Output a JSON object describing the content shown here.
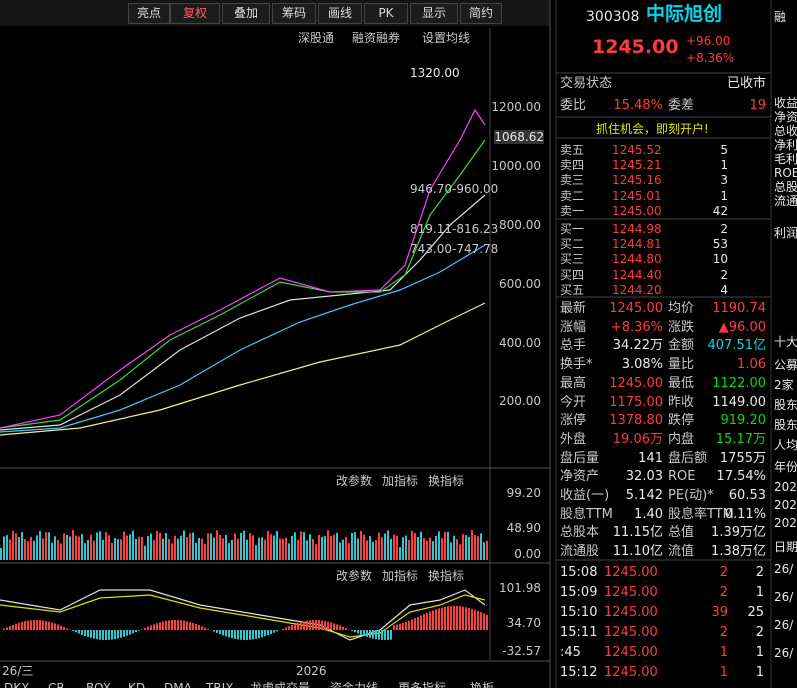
{
  "toolbar": [
    "亮点",
    "复权",
    "叠加",
    "筹码",
    "画线",
    "PK",
    "显示",
    "简约"
  ],
  "subbar": [
    "深股通",
    "融资融券",
    "设置均线"
  ],
  "price_chart": {
    "axis_labels": [
      "1200.00",
      "1000.00",
      "800.00",
      "600.00",
      "400.00",
      "200.00"
    ],
    "current": "1068.62",
    "high_note": "1320.00",
    "gap_notes": [
      "946.70-960.00",
      "819.11-816.23",
      "743.00-747.78"
    ]
  },
  "volume_pane": {
    "tools": [
      "改参数",
      "加指标",
      "换指标"
    ],
    "axis_labels": [
      "99.20",
      "48.90",
      "0.00"
    ]
  },
  "macd_pane": {
    "tools": [
      "改参数",
      "加指标",
      "换指标"
    ],
    "axis_labels": [
      "101.98",
      "34.70",
      "-32.57"
    ]
  },
  "time_bar": {
    "left": "26/三",
    "year": "2026"
  },
  "bottom_tabs": [
    "DKX",
    "CR",
    "BOX",
    "KD",
    "DMA",
    "TRIX",
    "龙虎成交量",
    "资金力线",
    "更多指标",
    "换板"
  ],
  "quote": {
    "code": "300308",
    "name": "中际旭创",
    "price": "1245.00",
    "change": "+96.00",
    "change_pct": "+8.36%",
    "status_label": "交易状态",
    "status": "已收市",
    "ratio_label": "委比",
    "ratio": "15.48%",
    "diff_label": "委差",
    "diff": "19",
    "banner": "抓住机会，即刻开户!",
    "asks": [
      [
        "卖五",
        "1245.52",
        "5"
      ],
      [
        "卖四",
        "1245.21",
        "1"
      ],
      [
        "卖三",
        "1245.16",
        "3"
      ],
      [
        "卖二",
        "1245.01",
        "1"
      ],
      [
        "卖一",
        "1245.00",
        "42"
      ]
    ],
    "bids": [
      [
        "买一",
        "1244.98",
        "2"
      ],
      [
        "买二",
        "1244.81",
        "53"
      ],
      [
        "买三",
        "1244.80",
        "10"
      ],
      [
        "买四",
        "1244.40",
        "2"
      ],
      [
        "买五",
        "1244.20",
        "4"
      ]
    ],
    "stats": [
      [
        "最新",
        "1245.00",
        "均价",
        "1190.74"
      ],
      [
        "涨幅",
        "+8.36%",
        "涨跌",
        "▲96.00"
      ],
      [
        "总手",
        "34.22万",
        "金额",
        "407.51亿"
      ],
      [
        "换手*",
        "3.08%",
        "量比",
        "1.06"
      ],
      [
        "最高",
        "1245.00",
        "最低",
        "1122.00"
      ],
      [
        "今开",
        "1175.00",
        "昨收",
        "1149.00"
      ],
      [
        "涨停",
        "1378.80",
        "跌停",
        "919.20"
      ],
      [
        "外盘",
        "19.06万",
        "内盘",
        "15.17万"
      ],
      [
        "盘后量",
        "141",
        "盘后额",
        "1755万"
      ],
      [
        "净资产",
        "32.03",
        "ROE",
        "17.54%"
      ],
      [
        "收益(一)",
        "5.142",
        "PE(动)*",
        "60.53"
      ],
      [
        "股息TTM",
        "1.40",
        "股息率TTM",
        "0.11%"
      ],
      [
        "总股本",
        "11.15亿",
        "总值",
        "1.39万亿"
      ],
      [
        "流通股",
        "11.10亿",
        "流值",
        "1.38万亿"
      ]
    ],
    "ticks": [
      [
        "15:08",
        "1245.00",
        "2",
        "2"
      ],
      [
        "15:09",
        "1245.00",
        "2",
        "1"
      ],
      [
        "15:10",
        "1245.00",
        "39",
        "25"
      ],
      [
        "15:11",
        "1245.00",
        "2",
        "2"
      ],
      [
        ":45",
        "1245.00",
        "1",
        "1"
      ],
      [
        "15:12",
        "1245.00",
        "1",
        "1"
      ]
    ]
  },
  "side_column": [
    "融",
    "收益",
    "净资",
    "总收",
    "净利",
    "毛利",
    "ROE",
    "总股",
    "流通",
    "利润",
    "十大",
    "公募",
    "2家",
    "股东",
    "股东",
    "人均",
    "年份",
    "202",
    "202",
    "202",
    "日期",
    "26/",
    "26/",
    "26/",
    "26/"
  ]
}
